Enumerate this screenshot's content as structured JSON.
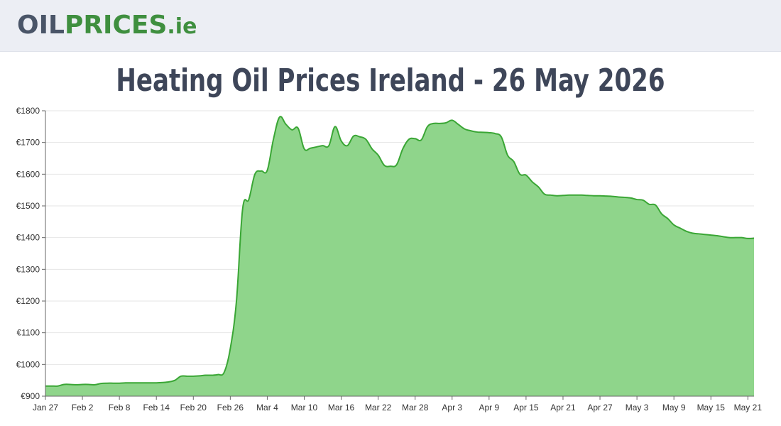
{
  "header": {
    "logo_part1": "OIL",
    "logo_part2": "PRICES",
    "logo_part3": ".ie"
  },
  "chart_data": {
    "type": "area",
    "title": "Heating Oil Prices Ireland - 26 May 2026",
    "xlabel": "",
    "ylabel": "",
    "y_ticks": [
      "€900",
      "€1000",
      "€1100",
      "€1200",
      "€1300",
      "€1400",
      "€1500",
      "€1600",
      "€1700",
      "€1800"
    ],
    "ylim": [
      900,
      1800
    ],
    "x_ticks": [
      "Jan 27",
      "Feb 2",
      "Feb 8",
      "Feb 14",
      "Feb 20",
      "Feb 26",
      "Mar 4",
      "Mar 10",
      "Mar 16",
      "Mar 22",
      "Mar 28",
      "Apr 3",
      "Apr 9",
      "Apr 15",
      "Apr 21",
      "Apr 27",
      "May 3",
      "May 9",
      "May 15",
      "May 21"
    ],
    "grid": true,
    "colors": {
      "line": "#3aa635",
      "fill": "#8fd58b",
      "grid": "#e6e6e6"
    },
    "series": [
      {
        "values": [
          932,
          932,
          932,
          937,
          937,
          936,
          937,
          937,
          936,
          940,
          941,
          941,
          941,
          942,
          942,
          942,
          942,
          942,
          942,
          943,
          945,
          950,
          963,
          963,
          963,
          964,
          966,
          966,
          968,
          975,
          1050,
          1200,
          1490,
          1520,
          1600,
          1610,
          1612,
          1710,
          1780,
          1758,
          1740,
          1745,
          1680,
          1682,
          1686,
          1690,
          1690,
          1750,
          1705,
          1690,
          1720,
          1718,
          1710,
          1680,
          1660,
          1628,
          1625,
          1630,
          1680,
          1710,
          1712,
          1708,
          1750,
          1760,
          1760,
          1762,
          1770,
          1757,
          1743,
          1737,
          1733,
          1732,
          1731,
          1728,
          1717,
          1660,
          1640,
          1600,
          1597,
          1576,
          1560,
          1537,
          1534,
          1532,
          1533,
          1534,
          1534,
          1534,
          1533,
          1532,
          1532,
          1531,
          1530,
          1528,
          1527,
          1525,
          1520,
          1518,
          1505,
          1503,
          1475,
          1460,
          1440,
          1430,
          1420,
          1414,
          1412,
          1410,
          1408,
          1406,
          1403,
          1400,
          1400,
          1400,
          1397,
          1398
        ]
      }
    ]
  }
}
